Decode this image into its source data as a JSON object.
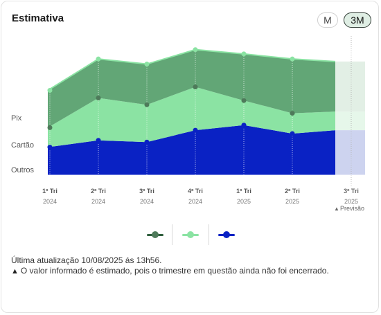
{
  "header": {
    "title": "Estimativa",
    "toggle_month": "M",
    "toggle_quarter": "3M"
  },
  "chart_data": {
    "type": "area",
    "stacked": true,
    "categories": [
      {
        "quarter": "1º Tri",
        "year": "2024"
      },
      {
        "quarter": "2º Tri",
        "year": "2024"
      },
      {
        "quarter": "3º Tri",
        "year": "2024"
      },
      {
        "quarter": "4º Tri",
        "year": "2024"
      },
      {
        "quarter": "1º Tri",
        "year": "2025"
      },
      {
        "quarter": "2º Tri",
        "year": "2025"
      },
      {
        "quarter": "3º Tri",
        "year": "2025",
        "forecast": true
      }
    ],
    "series_labels": [
      "Pix",
      "Cartão",
      "Outros"
    ],
    "series": [
      {
        "key": "outros",
        "color": "#0a22c4",
        "forecast_color": "#cdd3ef",
        "values": [
          33,
          41,
          39,
          53,
          59,
          49,
          53
        ]
      },
      {
        "key": "cartao",
        "color": "#8be3a3",
        "forecast_color": "#e6f7ea",
        "values": [
          23,
          50,
          44,
          51,
          29,
          24,
          22
        ]
      },
      {
        "key": "pix",
        "color": "#62a676",
        "forecast_color": "#e2efe5",
        "values": [
          44,
          46,
          48,
          44,
          55,
          64,
          59
        ]
      }
    ],
    "forecast_label": "Previsão",
    "forecast_icon": "warning-triangle-icon",
    "ylim": [
      0,
      160
    ],
    "grid": false
  },
  "legend": [
    {
      "series": "pix",
      "line_color": "#2f5e3d",
      "dot_color": "#4e7a5a"
    },
    {
      "series": "cartao",
      "line_color": "#8be3a3",
      "dot_color": "#8be3a3"
    },
    {
      "series": "outros",
      "line_color": "#0a22c4",
      "dot_color": "#0a22c4"
    }
  ],
  "footer": {
    "updated": "Última atualização 10/08/2025 ás 13h56.",
    "warning_icon": "warning-triangle-icon",
    "warning": "O valor informado é estimado, pois o trimestre em questão ainda não foi encerrado."
  }
}
